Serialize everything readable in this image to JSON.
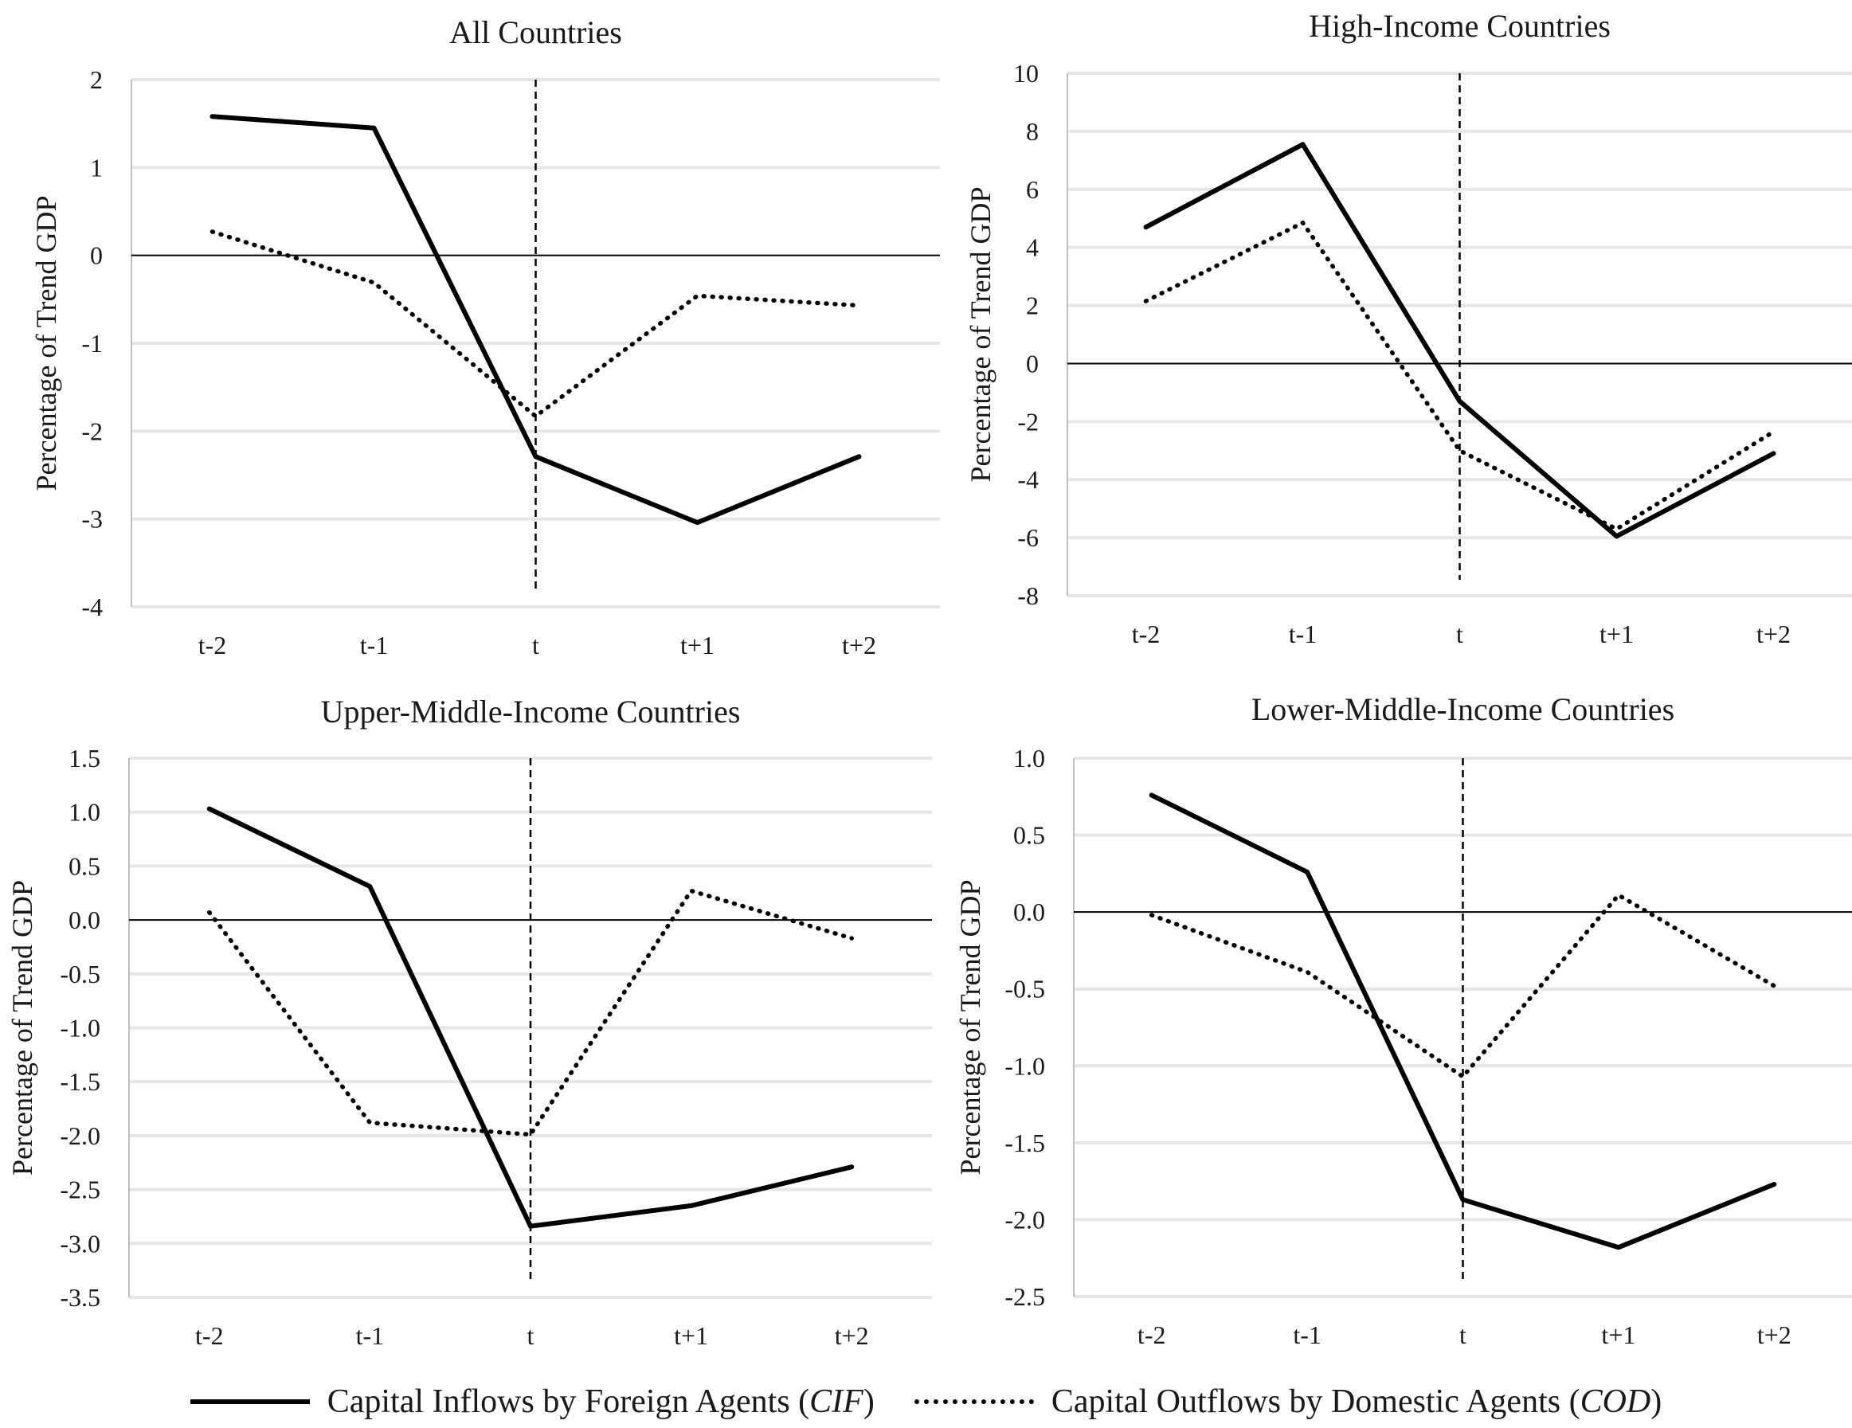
{
  "chart_data": [
    {
      "type": "line",
      "title": "All Countries",
      "ylabel": "Percentage of Trend GDP",
      "categories": [
        "t-2",
        "t-1",
        "t",
        "t+1",
        "t+2"
      ],
      "ylim": [
        -4,
        2
      ],
      "yticks": [
        2,
        1,
        0,
        -1,
        -2,
        -3,
        -4
      ],
      "ytick_labels": [
        "2",
        "1",
        "0",
        "-1",
        "-2",
        "-3",
        "-4"
      ],
      "grid": true,
      "event_line_at": "t",
      "series": [
        {
          "key": "cif",
          "values": [
            1.58,
            1.45,
            -2.29,
            -3.04,
            -2.29
          ]
        },
        {
          "key": "cod",
          "values": [
            0.27,
            -0.31,
            -1.83,
            -0.46,
            -0.57
          ]
        }
      ]
    },
    {
      "type": "line",
      "title": "High-Income Countries",
      "ylabel": "Percentage of Trend GDP",
      "categories": [
        "t-2",
        "t-1",
        "t",
        "t+1",
        "t+2"
      ],
      "ylim": [
        -8,
        10
      ],
      "yticks": [
        10,
        8,
        6,
        4,
        2,
        0,
        -2,
        -4,
        -6,
        -8
      ],
      "ytick_labels": [
        "10",
        "8",
        "6",
        "4",
        "2",
        "0",
        "-2",
        "-4",
        "-6",
        "-8"
      ],
      "grid": true,
      "event_line_at": "t",
      "series": [
        {
          "key": "cif",
          "values": [
            4.7,
            7.55,
            -1.3,
            -5.95,
            -3.1
          ]
        },
        {
          "key": "cod",
          "values": [
            2.15,
            4.85,
            -3.0,
            -5.7,
            -2.35
          ]
        }
      ]
    },
    {
      "type": "line",
      "title": "Upper-Middle-Income Countries",
      "ylabel": "Percentage of Trend GDP",
      "categories": [
        "t-2",
        "t-1",
        "t",
        "t+1",
        "t+2"
      ],
      "ylim": [
        -3.5,
        1.5
      ],
      "yticks": [
        1.5,
        1.0,
        0.5,
        0.0,
        -0.5,
        -1.0,
        -1.5,
        -2.0,
        -2.5,
        -3.0,
        -3.5
      ],
      "ytick_labels": [
        "1.5",
        "1.0",
        "0.5",
        "0.0",
        "-0.5",
        "-1.0",
        "-1.5",
        "-2.0",
        "-2.5",
        "-3.0",
        "-3.5"
      ],
      "grid": true,
      "event_line_at": "t",
      "series": [
        {
          "key": "cif",
          "values": [
            1.03,
            0.31,
            -2.84,
            -2.65,
            -2.29
          ]
        },
        {
          "key": "cod",
          "values": [
            0.07,
            -1.88,
            -1.99,
            0.27,
            -0.17
          ]
        }
      ]
    },
    {
      "type": "line",
      "title": "Lower-Middle-Income Countries",
      "ylabel": "Percentage of Trend GDP",
      "categories": [
        "t-2",
        "t-1",
        "t",
        "t+1",
        "t+2"
      ],
      "ylim": [
        -2.5,
        1.0
      ],
      "yticks": [
        1.0,
        0.5,
        0.0,
        -0.5,
        -1.0,
        -1.5,
        -2.0,
        -2.5
      ],
      "ytick_labels": [
        "1.0",
        "0.5",
        "0.0",
        "-0.5",
        "-1.0",
        "-1.5",
        "-2.0",
        "-2.5"
      ],
      "grid": true,
      "event_line_at": "t",
      "series": [
        {
          "key": "cif",
          "values": [
            0.76,
            0.26,
            -1.87,
            -2.18,
            -1.77
          ]
        },
        {
          "key": "cod",
          "values": [
            -0.02,
            -0.39,
            -1.07,
            0.11,
            -0.48
          ]
        }
      ]
    }
  ],
  "legend": {
    "placement": "bottom",
    "items": [
      {
        "key": "cif",
        "text": "Capital Inflows by Foreign Agents (",
        "abbr": "CIF",
        "close": ")",
        "style": "solid"
      },
      {
        "key": "cod",
        "text": "Capital Outflows by Domestic Agents (",
        "abbr": "COD",
        "close": ")",
        "style": "dotted"
      }
    ]
  },
  "colors": {
    "line": "#000000",
    "grid": "#e6e6e6",
    "axis": "#bfbfbf",
    "text": "#1a1a1a"
  }
}
